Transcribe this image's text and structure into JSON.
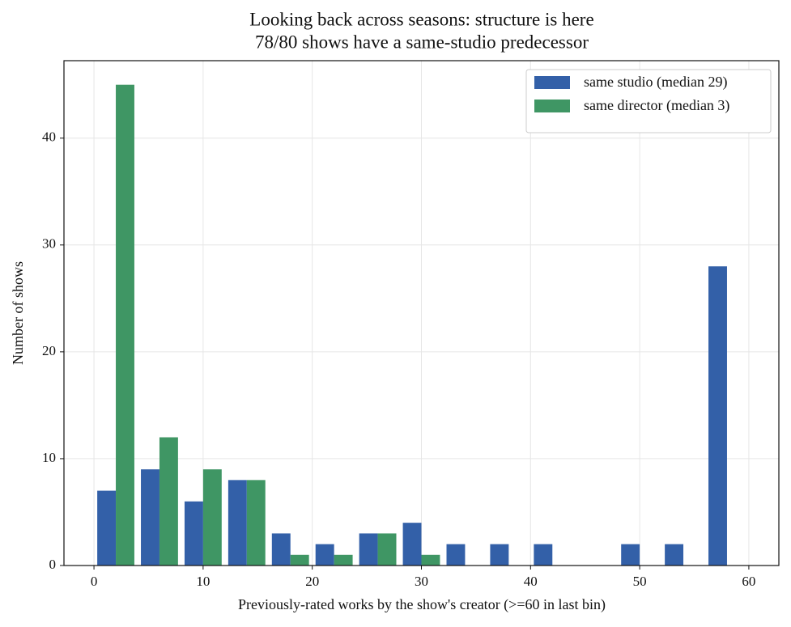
{
  "chart_data": {
    "type": "histogram",
    "title": "Looking back across seasons: structure is here",
    "subtitle": "78/80 shows have a same-studio predecessor",
    "x_label": "Previously-rated works by the show's creator (>=60 in last bin)",
    "y_label": "Number of shows",
    "bins": [
      0,
      4,
      8,
      12,
      16,
      20,
      24,
      28,
      32,
      36,
      40,
      44,
      48,
      52,
      56,
      60
    ],
    "series": [
      {
        "name": "same studio (median 29)",
        "color": "#3360a8",
        "values": [
          7,
          9,
          6,
          8,
          3,
          2,
          3,
          4,
          2,
          2,
          2,
          0,
          2,
          2,
          28
        ]
      },
      {
        "name": "same director (median 3)",
        "color": "#3f9664",
        "values": [
          45,
          12,
          9,
          8,
          1,
          1,
          3,
          1,
          0,
          0,
          0,
          0,
          0,
          0,
          0
        ]
      }
    ],
    "xlim": [
      -2.75,
      62.75
    ],
    "ylim": [
      0,
      47.25
    ],
    "xticks": [
      0,
      10,
      20,
      30,
      40,
      50,
      60
    ],
    "yticks": [
      0,
      10,
      20,
      30,
      40
    ],
    "grid": true,
    "legend": "upper right"
  }
}
